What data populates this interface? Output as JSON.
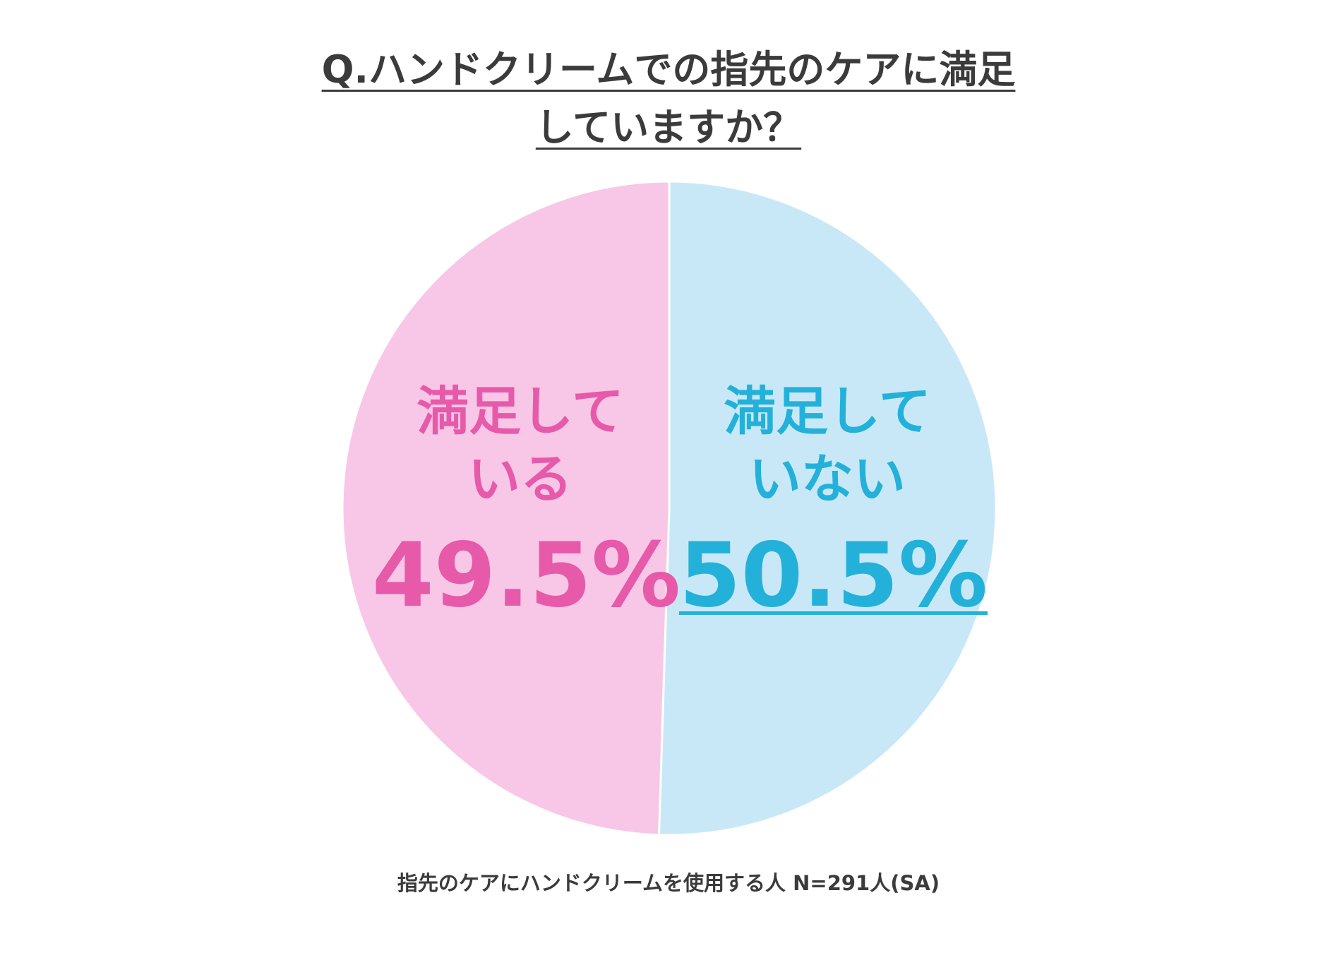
{
  "chart_data": {
    "type": "pie",
    "title": "Q.ハンドクリームでの指先のケアに満足していますか？",
    "categories": [
      "満足している",
      "満足していない"
    ],
    "values": [
      49.5,
      50.5
    ],
    "value_labels": [
      "49.5%",
      "50.5%"
    ],
    "colors": [
      "#f8c6e7",
      "#c9e8f7"
    ],
    "label_colors": [
      "#e65aa9",
      "#24b1d9"
    ],
    "note": "指先のケアにハンドクリームを使用する人 N=291人(SA)"
  }
}
